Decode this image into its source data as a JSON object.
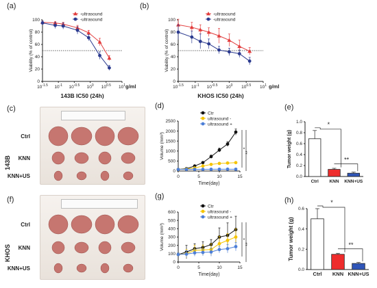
{
  "panel_letters": [
    "(a)",
    "(b)",
    "(c)",
    "(d)",
    "(e)",
    "(f)",
    "(g)",
    "(h)"
  ],
  "side_labels": {
    "top": "143B",
    "bottom": "KHOS"
  },
  "photo_rows": {
    "c": [
      "Ctrl",
      "KNN",
      "KNN+US"
    ],
    "f": [
      "Ctrl",
      "KNN",
      "KNN+US"
    ]
  },
  "photo_tumor_counts": [
    4,
    4,
    4
  ],
  "colors": {
    "red": "#e23b3b",
    "navy": "#2b3a8f",
    "black": "#111111",
    "yellow": "#f5c400",
    "blue": "#4d7fd8",
    "bar_red": "#ee2c2c",
    "bar_blue": "#2f55b8"
  },
  "chart_data": [
    {
      "id": "a",
      "type": "line",
      "title": "143B IC50 (24h)",
      "ylabel": "Viability (% of control)",
      "xlabel": "g/ml",
      "xscale": "log",
      "xlim": [
        -1.5,
        1.0
      ],
      "ylim": [
        0,
        100
      ],
      "xticks": [
        "10^-1.5",
        "10^-1",
        "10^-0.5",
        "10^0",
        "10^0.5",
        "10^1"
      ],
      "yticks": [
        "0",
        "20",
        "40",
        "60",
        "80",
        "100"
      ],
      "hline": 50,
      "legend": "top-right",
      "series": [
        {
          "name": "-ultrasound",
          "color": "red",
          "marker": "triangle",
          "x": [
            -1.5,
            -1.1,
            -0.85,
            -0.4,
            -0.05,
            0.3,
            0.6
          ],
          "y": [
            96,
            95,
            93,
            87,
            79,
            64,
            38
          ],
          "err": [
            2,
            2,
            3,
            4,
            4,
            6,
            4
          ]
        },
        {
          "name": "-ultrasound",
          "color": "navy",
          "marker": "circle",
          "x": [
            -1.5,
            -1.1,
            -0.85,
            -0.4,
            -0.05,
            0.3,
            0.6
          ],
          "y": [
            95,
            91,
            90,
            83,
            71,
            42,
            22
          ],
          "err": [
            3,
            5,
            5,
            6,
            5,
            6,
            4
          ]
        }
      ]
    },
    {
      "id": "b",
      "type": "line",
      "title": "KHOS IC50 (24h)",
      "ylabel": "Viability (% of control)",
      "xlabel": "g/ml",
      "xscale": "log",
      "xlim": [
        -1.5,
        1.0
      ],
      "ylim": [
        0,
        100
      ],
      "xticks": [
        "10^-1.5",
        "10^-1",
        "10^-0.5",
        "10^0",
        "10^0.5",
        "10^1"
      ],
      "yticks": [
        "0",
        "20",
        "40",
        "60",
        "80",
        "100"
      ],
      "hline": 50,
      "legend": "top-right",
      "series": [
        {
          "name": "-ultrasound",
          "color": "red",
          "marker": "triangle",
          "x": [
            -1.5,
            -1.1,
            -0.85,
            -0.6,
            -0.3,
            0.0,
            0.3,
            0.6
          ],
          "y": [
            92,
            88,
            84,
            80,
            74,
            67,
            57,
            49
          ],
          "err": [
            9,
            8,
            8,
            7,
            12,
            10,
            10,
            6
          ]
        },
        {
          "name": "-ultrasound",
          "color": "navy",
          "marker": "circle",
          "x": [
            -1.5,
            -1.1,
            -0.85,
            -0.6,
            -0.3,
            0.0,
            0.3,
            0.6
          ],
          "y": [
            80,
            72,
            65,
            61,
            51,
            48,
            45,
            33
          ],
          "err": [
            12,
            10,
            12,
            8,
            6,
            6,
            6,
            6
          ]
        }
      ]
    },
    {
      "id": "d",
      "type": "line",
      "xlabel": "Time(day)",
      "ylabel": "Volume (mm³)",
      "xlim": [
        0,
        15
      ],
      "ylim": [
        0,
        2500
      ],
      "xticks": [
        "0",
        "5",
        "10",
        "15"
      ],
      "yticks": [
        "0",
        "500",
        "1000",
        "1500",
        "2000",
        "2500"
      ],
      "legend": "top-right",
      "significance": [
        "*",
        "**"
      ],
      "series": [
        {
          "name": "Ctr",
          "color": "black",
          "marker": "circle",
          "x": [
            0,
            2,
            4,
            6,
            8,
            10,
            12,
            14
          ],
          "y": [
            80,
            120,
            250,
            420,
            720,
            1050,
            1350,
            1950
          ],
          "err": [
            20,
            30,
            40,
            60,
            80,
            100,
            120,
            150
          ]
        },
        {
          "name": "ultrasound -",
          "color": "yellow",
          "marker": "circle",
          "x": [
            0,
            2,
            4,
            6,
            8,
            10,
            12,
            14
          ],
          "y": [
            80,
            100,
            150,
            250,
            330,
            380,
            400,
            420
          ],
          "err": [
            10,
            15,
            20,
            30,
            40,
            40,
            40,
            45
          ]
        },
        {
          "name": "ultrasound +",
          "color": "blue",
          "marker": "circle",
          "x": [
            0,
            2,
            4,
            6,
            8,
            10,
            12,
            14
          ],
          "y": [
            80,
            82,
            85,
            85,
            88,
            90,
            92,
            90
          ],
          "err": [
            5,
            5,
            5,
            5,
            5,
            5,
            5,
            5
          ]
        }
      ]
    },
    {
      "id": "e",
      "type": "bar",
      "ylabel": "Tumor weight (g)",
      "categories": [
        "Ctrl",
        "KNN",
        "KNN+US"
      ],
      "values": [
        0.69,
        0.13,
        0.06
      ],
      "err": [
        0.15,
        0.02,
        0.02
      ],
      "ylim": [
        0,
        1.0
      ],
      "yticks": [
        "0.0",
        "0.2",
        "0.4",
        "0.6",
        "0.8",
        "1.0"
      ],
      "bar_colors": [
        "white",
        "bar_red",
        "bar_blue"
      ],
      "significance": [
        "*",
        "**"
      ]
    },
    {
      "id": "g",
      "type": "line",
      "xlabel": "Time(day)",
      "ylabel": "Volume (mm³)",
      "xlim": [
        0,
        15
      ],
      "ylim": [
        0,
        600
      ],
      "xticks": [
        "0",
        "5",
        "10",
        "15"
      ],
      "yticks": [
        "0",
        "100",
        "200",
        "300",
        "400",
        "500",
        "600"
      ],
      "legend": "top-right",
      "significance": [
        "*",
        "**"
      ],
      "series": [
        {
          "name": "Ctr",
          "color": "black",
          "marker": "circle",
          "x": [
            0,
            2,
            4,
            6,
            8,
            10,
            12,
            14
          ],
          "y": [
            90,
            120,
            160,
            175,
            210,
            300,
            320,
            390
          ],
          "err": [
            20,
            80,
            60,
            70,
            60,
            110,
            150,
            160
          ]
        },
        {
          "name": "ultrasound -",
          "color": "yellow",
          "marker": "circle",
          "x": [
            0,
            2,
            4,
            6,
            8,
            10,
            12,
            14
          ],
          "y": [
            90,
            100,
            140,
            145,
            150,
            220,
            260,
            300
          ],
          "err": [
            20,
            50,
            60,
            60,
            70,
            90,
            80,
            100
          ]
        },
        {
          "name": "ultrasound +",
          "color": "blue",
          "marker": "circle",
          "x": [
            0,
            2,
            4,
            6,
            8,
            10,
            12,
            14
          ],
          "y": [
            90,
            95,
            110,
            115,
            120,
            150,
            160,
            185
          ],
          "err": [
            20,
            40,
            40,
            40,
            50,
            40,
            50,
            50
          ]
        }
      ]
    },
    {
      "id": "h",
      "type": "bar",
      "ylabel": "Tumor weight (g)",
      "categories": [
        "Ctrl",
        "KNN",
        "KNN+US"
      ],
      "values": [
        0.5,
        0.15,
        0.06
      ],
      "err": [
        0.1,
        0.01,
        0.01
      ],
      "ylim": [
        0,
        0.6
      ],
      "yticks": [
        "0.0",
        "0.2",
        "0.4",
        "0.6"
      ],
      "bar_colors": [
        "white",
        "bar_red",
        "bar_blue"
      ],
      "significance": [
        "*",
        "**"
      ]
    }
  ]
}
